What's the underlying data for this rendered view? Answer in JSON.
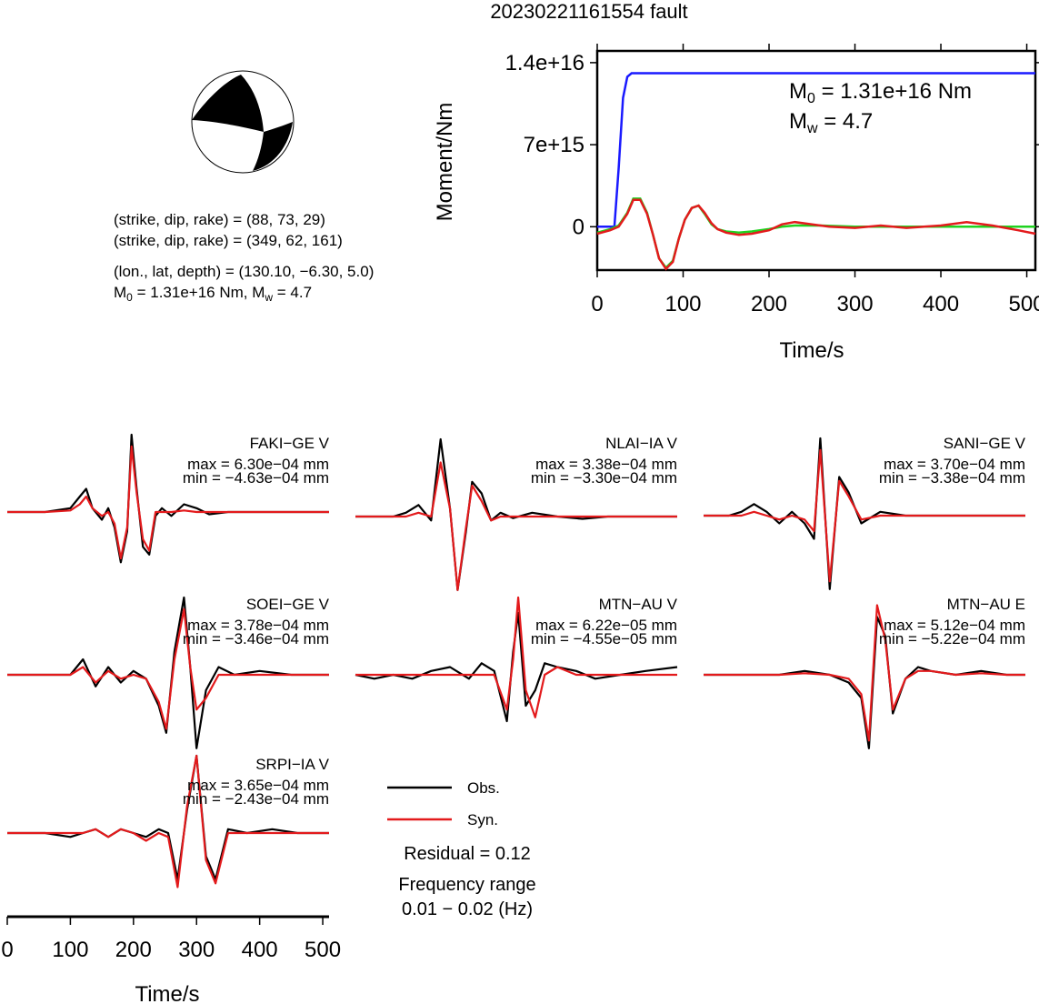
{
  "title": "20230221161554 fault",
  "source_info": {
    "line1": "(strike, dip, rake) = (88, 73, 29)",
    "line2": "(strike, dip, rake) = (349, 62, 161)",
    "line3": "(lon., lat, depth) = (130.10, −6.30, 5.0)",
    "m0_prefix": "M",
    "m0_sub": "0",
    "m0_text": " = 1.31e+16 Nm, M",
    "mw_sub": "w",
    "mw_text": " = 4.7"
  },
  "legend": {
    "obs_label": "Obs.",
    "syn_label": "Syn.",
    "residual": "Residual = 0.12",
    "freq_label": "Frequency range",
    "freq_value": "0.01 − 0.02 (Hz)"
  },
  "colors": {
    "obs": "#000000",
    "syn": "#e31a1c",
    "moment": "#1a1aff",
    "stf": "#1fd21f"
  },
  "chart_data": [
    {
      "type": "line",
      "name": "moment-rate",
      "xlabel": "Time/s",
      "ylabel": "Moment/Nm",
      "xlim": [
        0,
        510
      ],
      "ylim": [
        -3700000000000000.0,
        1.5e+16
      ],
      "xticks": [
        "0",
        "100",
        "200",
        "300",
        "400",
        "500"
      ],
      "yticks": [
        "0",
        "7e+15",
        "1.4e+16"
      ],
      "annotation": {
        "m0": " = 1.31e+16 Nm",
        "mw": " = 4.7",
        "m_letter": "M",
        "m0_sub": "0",
        "mw_sub": "w"
      },
      "series": [
        {
          "x": [
            0,
            20,
            25,
            30,
            35,
            40,
            510
          ],
          "y": [
            0,
            0,
            5000000000000000.0,
            1.1e+16,
            1.28e+16,
            1.31e+16,
            1.31e+16
          ]
        },
        {
          "x": [
            0,
            15,
            25,
            35,
            42,
            50,
            58,
            65,
            72,
            80,
            88,
            95,
            102,
            110,
            118,
            125,
            133,
            140,
            150,
            165,
            180,
            200,
            215,
            230,
            260,
            300,
            340,
            400,
            510
          ],
          "y": [
            -500000000000000.0,
            -200000000000000.0,
            100000000000000.0,
            1200000000000000.0,
            2400000000000000.0,
            2400000000000000.0,
            1200000000000000.0,
            -700000000000000.0,
            -2700000000000000.0,
            -3500000000000000.0,
            -2900000000000000.0,
            -1000000000000000.0,
            600000000000000.0,
            1600000000000000.0,
            1800000000000000.0,
            1100000000000000.0,
            200000000000000.0,
            -200000000000000.0,
            -400000000000000.0,
            -500000000000000.0,
            -400000000000000.0,
            -200000000000000.0,
            0,
            100000000000000.0,
            100000000000000.0,
            0,
            0,
            0,
            0
          ]
        },
        {
          "x": [
            0,
            15,
            25,
            35,
            42,
            50,
            58,
            65,
            72,
            80,
            88,
            95,
            102,
            110,
            118,
            125,
            133,
            140,
            150,
            165,
            180,
            200,
            215,
            230,
            250,
            270,
            300,
            330,
            360,
            400,
            430,
            460,
            490,
            510
          ],
          "y": [
            -600000000000000.0,
            -300000000000000.0,
            0,
            1100000000000000.0,
            2300000000000000.0,
            2300000000000000.0,
            1100000000000000.0,
            -700000000000000.0,
            -2700000000000000.0,
            -3600000000000000.0,
            -3000000000000000.0,
            -1000000000000000.0,
            600000000000000.0,
            1600000000000000.0,
            1800000000000000.0,
            1200000000000000.0,
            300000000000000.0,
            -200000000000000.0,
            -500000000000000.0,
            -700000000000000.0,
            -600000000000000.0,
            -300000000000000.0,
            200000000000000.0,
            400000000000000.0,
            200000000000000.0,
            0,
            -100000000000000.0,
            100000000000000.0,
            -100000000000000.0,
            100000000000000.0,
            400000000000000.0,
            100000000000000.0,
            -300000000000000.0,
            -600000000000000.0
          ]
        }
      ]
    },
    {
      "type": "line",
      "name": "waveforms",
      "xlabel": "Time/s",
      "xlim": [
        0,
        510
      ],
      "xticks": [
        "0",
        "100",
        "200",
        "300",
        "400",
        "500"
      ],
      "legend": [
        "Obs.",
        "Syn."
      ],
      "stations": [
        {
          "label": "FAKI−GE V",
          "max": "max = 6.30e−04 mm",
          "min": "min = −4.63e−04 mm",
          "x": [
            0,
            60,
            100,
            115,
            125,
            135,
            150,
            160,
            170,
            180,
            190,
            197,
            205,
            215,
            225,
            235,
            245,
            260,
            280,
            300,
            320,
            350,
            510
          ],
          "obs": [
            0,
            0,
            0.05,
            0.2,
            0.3,
            0.05,
            -0.1,
            0.05,
            -0.2,
            -0.65,
            -0.25,
            1.0,
            0.3,
            -0.45,
            -0.55,
            -0.05,
            0.05,
            -0.05,
            0.1,
            0.05,
            -0.03,
            0.0,
            0.0
          ],
          "syn": [
            0,
            0,
            0.02,
            0.1,
            0.2,
            0.05,
            -0.05,
            0.0,
            -0.15,
            -0.6,
            -0.2,
            0.85,
            0.25,
            -0.35,
            -0.5,
            0.0,
            0.0,
            0.0,
            0.02,
            0.0,
            0.0,
            0.0,
            0.0
          ]
        },
        {
          "label": "NLAI−IA V",
          "max": "max = 3.38e−04 mm",
          "min": "min = −3.30e−04 mm",
          "x": [
            0,
            60,
            80,
            100,
            120,
            135,
            150,
            162,
            175,
            185,
            200,
            215,
            230,
            250,
            280,
            320,
            360,
            400,
            510
          ],
          "obs": [
            0,
            0,
            0.05,
            0.15,
            -0.05,
            1.0,
            0.1,
            -0.95,
            -0.2,
            0.45,
            0.3,
            -0.05,
            0.05,
            -0.02,
            0.05,
            0.0,
            -0.03,
            0.0,
            0.0
          ],
          "syn": [
            0,
            0,
            0.0,
            0.05,
            0.0,
            0.7,
            0.1,
            -0.95,
            -0.15,
            0.4,
            0.2,
            -0.05,
            0.0,
            0.0,
            0.0,
            0.0,
            0.0,
            0.0,
            0.0
          ]
        },
        {
          "label": "SANI−GE V",
          "max": "max = 3.70e−04 mm",
          "min": "min = −3.38e−04 mm",
          "x": [
            0,
            40,
            60,
            80,
            100,
            120,
            140,
            160,
            175,
            185,
            200,
            215,
            230,
            250,
            280,
            320,
            360,
            400,
            510
          ],
          "obs": [
            0,
            0,
            0.05,
            0.15,
            0.05,
            -0.1,
            0.05,
            -0.1,
            -0.3,
            1.0,
            -0.95,
            0.5,
            0.3,
            -0.1,
            0.05,
            0.0,
            0.0,
            0.0,
            0.0
          ],
          "syn": [
            0,
            0,
            0.0,
            0.05,
            0.0,
            -0.05,
            0.0,
            -0.05,
            -0.2,
            0.85,
            -0.85,
            0.45,
            0.25,
            -0.05,
            0.0,
            0.0,
            0.0,
            0.0,
            0.0
          ]
        },
        {
          "label": "SOEI−GE V",
          "max": "max = 3.78e−04 mm",
          "min": "min = −3.46e−04 mm",
          "x": [
            0,
            60,
            100,
            120,
            140,
            160,
            180,
            200,
            220,
            240,
            252,
            265,
            280,
            290,
            300,
            315,
            335,
            360,
            400,
            450,
            510
          ],
          "obs": [
            0,
            0,
            0.0,
            0.2,
            -0.15,
            0.1,
            -0.1,
            0.05,
            -0.05,
            -0.4,
            -0.75,
            0.3,
            1.0,
            0.1,
            -0.95,
            -0.2,
            0.1,
            0.0,
            0.05,
            0.0,
            0.0
          ],
          "syn": [
            0,
            0,
            0.0,
            0.1,
            -0.1,
            0.05,
            -0.05,
            0.0,
            -0.05,
            -0.35,
            -0.7,
            0.2,
            0.85,
            0.1,
            -0.45,
            -0.3,
            0.0,
            0.0,
            0.0,
            0.0,
            0.0
          ]
        },
        {
          "label": "MTN−AU V",
          "max": "max = 6.22e−05 mm",
          "min": "min = −4.55e−05 mm",
          "x": [
            0,
            30,
            60,
            90,
            120,
            150,
            180,
            200,
            220,
            240,
            250,
            258,
            270,
            285,
            300,
            320,
            350,
            380,
            420,
            460,
            510
          ],
          "obs": [
            0,
            -0.05,
            0.0,
            -0.05,
            0.05,
            0.1,
            -0.05,
            0.15,
            0.05,
            -0.6,
            0.3,
            0.8,
            -0.4,
            -0.2,
            0.15,
            0.1,
            0.05,
            -0.05,
            0.0,
            0.05,
            0.1
          ],
          "syn": [
            0,
            0.0,
            0.0,
            0.0,
            0.0,
            0.0,
            0.0,
            0.0,
            0.0,
            -0.45,
            0.2,
            1.0,
            -0.2,
            -0.55,
            0.0,
            0.1,
            0.0,
            0.0,
            0.0,
            0.0,
            0.0
          ]
        },
        {
          "label": "MTN−AU E",
          "max": "max = 5.12e−04 mm",
          "min": "min = −5.22e−04 mm",
          "x": [
            0,
            60,
            120,
            160,
            200,
            230,
            250,
            262,
            275,
            288,
            300,
            320,
            340,
            360,
            400,
            440,
            480,
            510
          ],
          "obs": [
            0,
            0.0,
            0.0,
            0.05,
            0.0,
            -0.1,
            -0.3,
            -0.95,
            0.75,
            0.5,
            -0.5,
            -0.05,
            0.1,
            0.05,
            0.0,
            0.05,
            0.0,
            0.0
          ],
          "syn": [
            0,
            0.0,
            0.0,
            0.02,
            0.0,
            -0.05,
            -0.25,
            -0.85,
            0.9,
            0.45,
            -0.45,
            -0.05,
            0.05,
            0.05,
            0.0,
            0.02,
            0.0,
            0.0
          ]
        },
        {
          "label": "SRPI−IA V",
          "max": "max = 3.65e−04 mm",
          "min": "min = −2.43e−04 mm",
          "x": [
            0,
            60,
            100,
            120,
            140,
            160,
            180,
            200,
            220,
            240,
            255,
            270,
            285,
            300,
            315,
            330,
            350,
            380,
            420,
            460,
            510
          ],
          "obs": [
            0,
            0.0,
            -0.05,
            0.0,
            0.05,
            -0.05,
            0.05,
            0.0,
            -0.05,
            0.05,
            0.0,
            -0.6,
            0.3,
            1.0,
            -0.3,
            -0.6,
            0.05,
            0.0,
            0.05,
            0.0,
            0.0
          ],
          "syn": [
            0,
            0.0,
            0.0,
            0.0,
            0.05,
            -0.05,
            0.05,
            0.0,
            -0.1,
            0.0,
            -0.05,
            -0.7,
            0.35,
            1.0,
            -0.35,
            -0.65,
            0.0,
            0.0,
            0.0,
            0.0,
            0.0
          ]
        }
      ]
    }
  ]
}
